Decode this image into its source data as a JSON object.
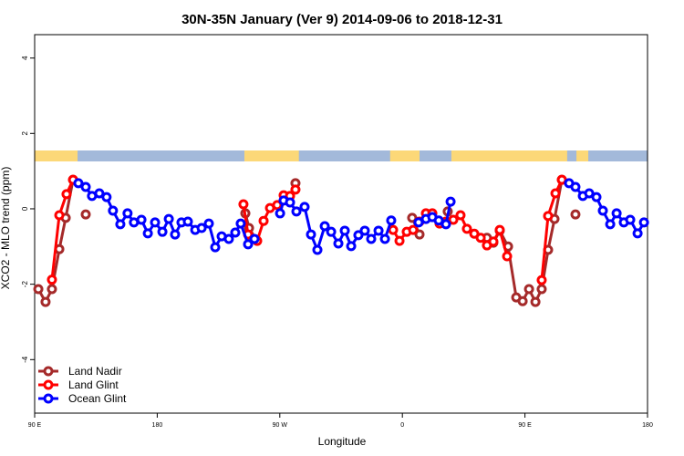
{
  "chart_data": {
    "type": "line",
    "title": "30N-35N January (Ver 9)   2014-09-06 to 2018-12-31",
    "x_label": "Longitude",
    "y_label": "XCO2 - MLO trend (ppm)",
    "xlim": [
      90,
      540
    ],
    "ylim": [
      -5.42,
      4.62
    ],
    "xticks": [
      {
        "value": 90,
        "label": "90 E"
      },
      180,
      {
        "value": 270,
        "label": "90 W"
      },
      {
        "value": 360,
        "label": "0"
      },
      {
        "value": 450,
        "label": "90 E"
      },
      {
        "value": 540,
        "label": "180"
      }
    ],
    "yticks": [
      -4,
      -2,
      0,
      2,
      4
    ],
    "legend": "bottom-left",
    "land_color": "#fcd878",
    "ocean_color": "#a3b9da",
    "land_segments": [
      [
        90,
        121.5
      ],
      [
        244,
        284
      ],
      [
        351,
        372.6
      ],
      [
        396,
        481
      ],
      [
        487.8,
        496.5
      ]
    ],
    "series": [
      {
        "name": "Land Nadir",
        "color": "#a52a2a",
        "x": [
          92.7,
          98,
          102.7,
          108.1,
          112.8,
          118.2,
          null,
          127.5,
          null,
          244.7,
          247.4,
          252.7,
          null,
          281.5,
          null,
          367.2,
          372.6,
          null,
          393.3,
          null,
          422.1,
          426.8,
          431.5,
          437.6,
          443.6,
          448.3,
          453.0,
          457.7,
          462.3,
          467.0,
          471.7,
          477.1,
          null,
          487.1
        ],
        "values": [
          -2.13,
          -2.47,
          -2.13,
          -1.07,
          -0.24,
          0.77,
          null,
          -0.15,
          null,
          -0.12,
          -0.51,
          -0.82,
          null,
          0.68,
          null,
          -0.24,
          -0.68,
          null,
          -0.07,
          null,
          -0.77,
          -0.9,
          -0.58,
          -1.0,
          -2.35,
          -2.45,
          -2.13,
          -2.47,
          -2.13,
          -1.09,
          -0.27,
          0.77,
          null,
          -0.15
        ]
      },
      {
        "name": "Land Glint",
        "color": "#ff0000",
        "x": [
          102.7,
          108.1,
          113.4,
          118.2,
          null,
          243.3,
          246.7,
          253.4,
          258.1,
          262.8,
          268.1,
          272.8,
          277.5,
          281.5,
          null,
          353.2,
          357.9,
          363.2,
          367.9,
          372.6,
          377.3,
          382,
          387.3,
          392,
          397.4,
          402.7,
          407.4,
          412.8,
          417.5,
          422.1,
          426.8,
          431.5,
          436.9,
          null,
          462.3,
          467,
          472.4,
          477.1
        ],
        "values": [
          -1.88,
          -0.17,
          0.39,
          0.77,
          null,
          0.12,
          -0.68,
          -0.85,
          -0.32,
          0.02,
          0.1,
          0.36,
          0.34,
          0.51,
          null,
          -0.56,
          -0.85,
          -0.61,
          -0.56,
          -0.34,
          -0.12,
          -0.12,
          -0.39,
          -0.34,
          -0.29,
          -0.17,
          -0.53,
          -0.66,
          -0.77,
          -0.97,
          -0.87,
          -0.56,
          -1.26,
          null,
          -1.89,
          -0.19,
          0.41,
          0.77
        ]
      },
      {
        "name": "Ocean Glint",
        "color": "#0000ff",
        "x": [
          122.1,
          127.5,
          132.1,
          137.5,
          142.8,
          147.5,
          152.9,
          158.2,
          162.9,
          168.4,
          173.1,
          178.4,
          183.8,
          188.5,
          193.1,
          197.8,
          202.5,
          207.9,
          212.6,
          217.9,
          222.6,
          227.3,
          232.6,
          237.3,
          241.3,
          246.7,
          251.4,
          null,
          270.2,
          272.8,
          277.5,
          282.2,
          288.2,
          292.9,
          297.6,
          303,
          307.7,
          313,
          317.7,
          322.4,
          327.7,
          332.4,
          337.1,
          342.5,
          347.2,
          351.8,
          null,
          371.9,
          377.3,
          382,
          386.7,
          392,
          395.4,
          null,
          482.4,
          487.1,
          492.5,
          497.2,
          502.5,
          507.2,
          512.6,
          517.3,
          522.6,
          527.3,
          532.7,
          537.4
        ],
        "values": [
          0.68,
          0.58,
          0.34,
          0.41,
          0.31,
          -0.05,
          -0.41,
          -0.12,
          -0.36,
          -0.29,
          -0.65,
          -0.36,
          -0.61,
          -0.27,
          -0.68,
          -0.36,
          -0.34,
          -0.56,
          -0.51,
          -0.39,
          -1.02,
          -0.73,
          -0.8,
          -0.63,
          -0.39,
          -0.94,
          -0.8,
          null,
          -0.12,
          0.22,
          0.17,
          -0.07,
          0.05,
          -0.68,
          -1.09,
          -0.46,
          -0.61,
          -0.92,
          -0.58,
          -0.99,
          -0.7,
          -0.58,
          -0.8,
          -0.58,
          -0.8,
          -0.31,
          null,
          -0.36,
          -0.27,
          -0.22,
          -0.31,
          -0.41,
          0.19,
          null,
          0.68,
          0.58,
          0.34,
          0.41,
          0.31,
          -0.05,
          -0.41,
          -0.12,
          -0.36,
          -0.29,
          -0.65,
          -0.36
        ]
      }
    ]
  }
}
